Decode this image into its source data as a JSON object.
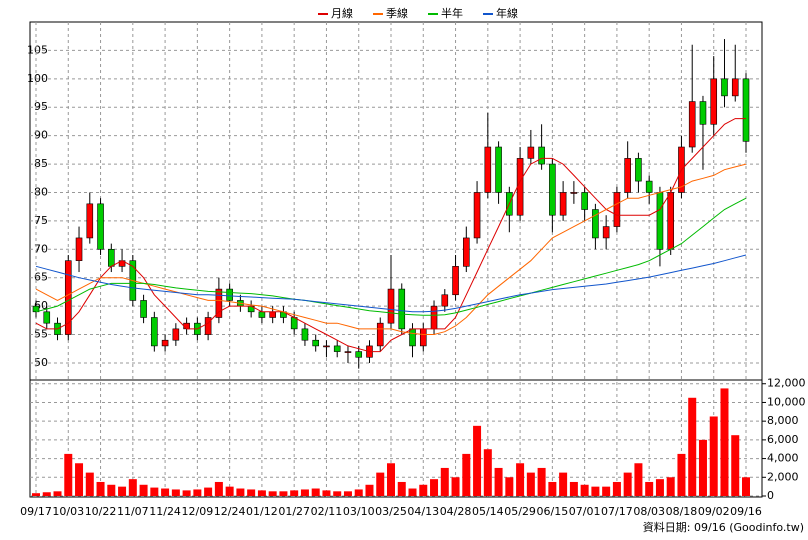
{
  "chart_data": {
    "type": "candlestick",
    "categories": [
      "09/17",
      null,
      null,
      "10/03",
      null,
      null,
      "10/22",
      null,
      null,
      "11/07",
      null,
      null,
      "11/24",
      null,
      null,
      "12/09",
      null,
      null,
      "12/24",
      null,
      null,
      "01/12",
      null,
      null,
      "01/27",
      null,
      null,
      "02/11",
      null,
      null,
      "03/10",
      null,
      null,
      "03/25",
      null,
      null,
      "04/13",
      null,
      null,
      "04/28",
      null,
      null,
      "05/14",
      null,
      null,
      "05/29",
      null,
      null,
      "06/15",
      null,
      null,
      "07/01",
      null,
      null,
      "07/17",
      null,
      null,
      "08/03",
      null,
      null,
      "08/18",
      null,
      null,
      "09/02",
      null,
      null,
      "09/16"
    ],
    "open": [
      60,
      59,
      57,
      55,
      68,
      72,
      78,
      70,
      67,
      68,
      61,
      58,
      53,
      54,
      56,
      57,
      55,
      58,
      63,
      61,
      60,
      59,
      58,
      59,
      58,
      56,
      54,
      53,
      53,
      52,
      52,
      51,
      53,
      57,
      63,
      56,
      53,
      56,
      60,
      62,
      67,
      72,
      80,
      88,
      80,
      76,
      86,
      88,
      85,
      76,
      80,
      80,
      77,
      72,
      74,
      80,
      86,
      82,
      80,
      70,
      80,
      88,
      96,
      92,
      100,
      97,
      100
    ],
    "high": [
      61,
      60,
      58,
      69,
      74,
      80,
      79,
      71,
      70,
      69,
      62,
      59,
      55,
      57,
      58,
      58,
      59,
      65,
      64,
      62,
      61,
      60,
      60,
      60,
      59,
      57,
      55,
      54,
      54,
      53,
      53,
      54,
      58,
      69,
      64,
      57,
      57,
      61,
      63,
      69,
      74,
      82,
      94,
      89,
      81,
      88,
      91,
      92,
      86,
      82,
      82,
      81,
      78,
      76,
      81,
      89,
      87,
      83,
      81,
      81,
      90,
      106,
      97,
      104,
      107,
      106,
      101
    ],
    "low": [
      58,
      56,
      54,
      54,
      66,
      71,
      69,
      66,
      66,
      60,
      57,
      52,
      52,
      53,
      55,
      54,
      54,
      57,
      60,
      59,
      58,
      57,
      57,
      57,
      55,
      53,
      52,
      51,
      51,
      50,
      49,
      50,
      52,
      56,
      55,
      51,
      52,
      55,
      59,
      61,
      66,
      71,
      79,
      78,
      73,
      75,
      85,
      84,
      73,
      75,
      78,
      75,
      70,
      70,
      73,
      79,
      80,
      78,
      67,
      69,
      79,
      87,
      84,
      90,
      95,
      96,
      87
    ],
    "close": [
      59,
      57,
      55,
      68,
      72,
      78,
      70,
      67,
      68,
      61,
      58,
      53,
      54,
      56,
      57,
      55,
      58,
      63,
      61,
      60,
      59,
      58,
      59,
      58,
      56,
      54,
      53,
      53,
      52,
      52,
      51,
      53,
      57,
      63,
      56,
      53,
      56,
      60,
      62,
      67,
      72,
      80,
      88,
      80,
      76,
      86,
      88,
      85,
      76,
      80,
      80,
      77,
      72,
      74,
      80,
      86,
      82,
      80,
      70,
      80,
      88,
      96,
      92,
      100,
      97,
      100,
      89
    ],
    "up_color": "#ff0000",
    "down_color": "#00cc00",
    "ylim": [
      47,
      110
    ],
    "yticks": [
      50,
      55,
      60,
      65,
      70,
      75,
      80,
      85,
      90,
      95,
      100,
      105
    ],
    "grid": true,
    "series": [
      {
        "name": "月線",
        "color": "#dd0000",
        "values": [
          57,
          56,
          56,
          57,
          59,
          62,
          65,
          67,
          68,
          67,
          65,
          62,
          60,
          58,
          56,
          56,
          57,
          59,
          60,
          60,
          60,
          59,
          59,
          59,
          58,
          57,
          56,
          55,
          54,
          53,
          52.5,
          52,
          52,
          54,
          55,
          56,
          56,
          56,
          56,
          58,
          62,
          66,
          70,
          74,
          78,
          82,
          85,
          86,
          86,
          85,
          83,
          81,
          79,
          77,
          76,
          76,
          76,
          76,
          77,
          80,
          84,
          86,
          88,
          90,
          92,
          93,
          93
        ]
      },
      {
        "name": "季線",
        "color": "#ff6600",
        "values": [
          63,
          62,
          61,
          62,
          63,
          64,
          65,
          65,
          65,
          64.5,
          64,
          63.5,
          63,
          62.5,
          62,
          61.5,
          61,
          61,
          60.8,
          60.5,
          60.2,
          60,
          59.5,
          59,
          58.5,
          58,
          57.5,
          57,
          57,
          56.5,
          56,
          56,
          56,
          56,
          55.5,
          55.2,
          55,
          55,
          55.5,
          56.5,
          58,
          60,
          62,
          63.5,
          65,
          66.5,
          68,
          70,
          72,
          73,
          74,
          75,
          76,
          77,
          78,
          79,
          79,
          79.5,
          80,
          80.5,
          81,
          82,
          82.5,
          83,
          84,
          84.5,
          85
        ]
      },
      {
        "name": "半年",
        "color": "#00bb00",
        "values": [
          59,
          59.5,
          60,
          61,
          62,
          63,
          63.5,
          64,
          64,
          64,
          64,
          63.8,
          63.5,
          63.2,
          63,
          62.8,
          62.6,
          62.5,
          62.4,
          62.3,
          62.2,
          62,
          61.8,
          61.5,
          61.2,
          61,
          60.7,
          60.4,
          60.1,
          59.8,
          59.5,
          59.2,
          59,
          58.8,
          58.6,
          58.5,
          58.4,
          58.4,
          58.5,
          58.8,
          59.3,
          59.8,
          60.3,
          60.8,
          61.3,
          61.8,
          62.3,
          62.8,
          63.3,
          63.8,
          64.3,
          64.8,
          65.3,
          65.8,
          66.3,
          66.8,
          67.3,
          68,
          69,
          70,
          71,
          72.5,
          74,
          75.5,
          77,
          78,
          79
        ]
      },
      {
        "name": "年線",
        "color": "#1155cc",
        "values": [
          67,
          66.5,
          66,
          65.5,
          65,
          64.6,
          64.2,
          63.8,
          63.5,
          63.2,
          63,
          62.8,
          62.6,
          62.4,
          62.2,
          62,
          62,
          61.9,
          61.8,
          61.7,
          61.6,
          61.5,
          61.4,
          61.3,
          61.2,
          61,
          60.8,
          60.6,
          60.4,
          60.2,
          60,
          59.8,
          59.6,
          59.4,
          59.2,
          59,
          59,
          59.1,
          59.3,
          59.6,
          60,
          60.4,
          60.8,
          61.2,
          61.6,
          62,
          62.3,
          62.6,
          62.9,
          63.1,
          63.3,
          63.5,
          63.7,
          63.9,
          64.2,
          64.5,
          64.8,
          65.1,
          65.5,
          65.9,
          66.3,
          66.7,
          67.1,
          67.5,
          68,
          68.5,
          69
        ]
      }
    ],
    "volume": {
      "color": "#ff0000",
      "values": [
        300,
        400,
        500,
        4500,
        3500,
        2500,
        1500,
        1200,
        1000,
        1800,
        1200,
        900,
        800,
        700,
        600,
        700,
        900,
        1500,
        1000,
        800,
        700,
        600,
        500,
        500,
        600,
        700,
        800,
        600,
        500,
        500,
        700,
        1200,
        2500,
        3500,
        1500,
        800,
        1200,
        1800,
        3000,
        2000,
        4500,
        7500,
        5000,
        3000,
        2000,
        3500,
        2500,
        3000,
        1500,
        2500,
        1500,
        1200,
        1000,
        1000,
        1500,
        2500,
        3500,
        1500,
        1800,
        2000,
        4500,
        10500,
        6000,
        8500,
        11500,
        6500,
        2000
      ],
      "ylim": [
        0,
        12400
      ],
      "yticks": [
        0,
        {
          "value": 2000,
          "label": "2,000"
        },
        {
          "value": 4000,
          "label": "4,000"
        },
        {
          "value": 6000,
          "label": "6,000"
        },
        {
          "value": 8000,
          "label": "8,000"
        },
        {
          "value": 10000,
          "label": "10,000"
        },
        {
          "value": 12000,
          "label": "12,000"
        }
      ]
    },
    "note": "資料日期: 09/16  (Goodinfo.tw)"
  }
}
